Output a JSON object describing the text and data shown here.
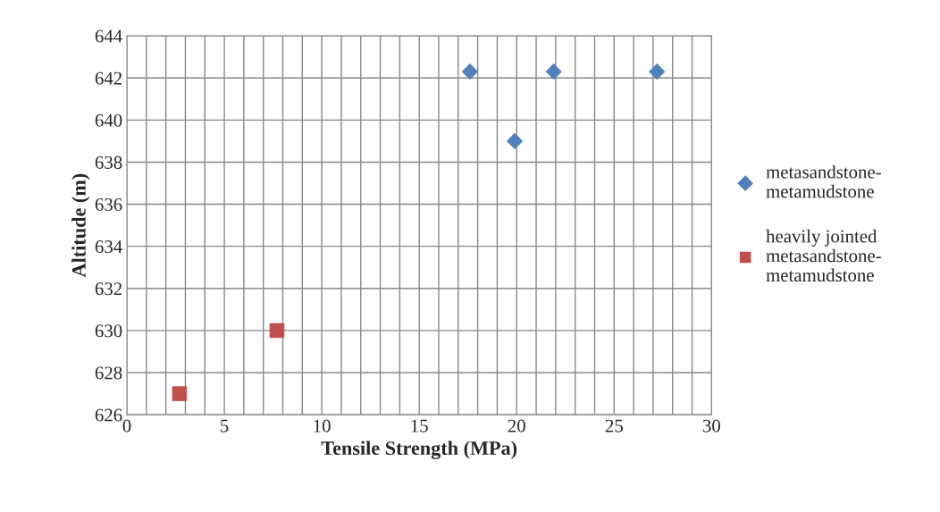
{
  "chart_data": {
    "type": "scatter",
    "xlabel": "Tensile Strength (MPa)",
    "ylabel": "Altitude (m)",
    "series": [
      {
        "name": "metasandstone-\nmetamudstone",
        "color": "#4f81bd",
        "marker": "diamond",
        "x": [
          17.6,
          19.9,
          21.9,
          27.2
        ],
        "values": [
          642.3,
          639,
          642.3,
          642.3
        ]
      },
      {
        "name": "heavily jointed\nmetasandstone-\nmetamudstone",
        "color": "#c0504d",
        "marker": "square",
        "x": [
          2.7,
          7.7
        ],
        "values": [
          627,
          630
        ]
      }
    ],
    "xlim": [
      0,
      30
    ],
    "ylim": [
      626,
      644
    ],
    "xticks": [
      0,
      {
        "value": 1,
        "label": null
      },
      {
        "value": 2,
        "label": null
      },
      {
        "value": 3,
        "label": null
      },
      {
        "value": 4,
        "label": null
      },
      5,
      {
        "value": 6,
        "label": null
      },
      {
        "value": 7,
        "label": null
      },
      {
        "value": 8,
        "label": null
      },
      {
        "value": 9,
        "label": null
      },
      10,
      {
        "value": 11,
        "label": null
      },
      {
        "value": 12,
        "label": null
      },
      {
        "value": 13,
        "label": null
      },
      {
        "value": 14,
        "label": null
      },
      15,
      {
        "value": 16,
        "label": null
      },
      {
        "value": 17,
        "label": null
      },
      {
        "value": 18,
        "label": null
      },
      {
        "value": 19,
        "label": null
      },
      20,
      {
        "value": 21,
        "label": null
      },
      {
        "value": 22,
        "label": null
      },
      {
        "value": 23,
        "label": null
      },
      {
        "value": 24,
        "label": null
      },
      25,
      {
        "value": 26,
        "label": null
      },
      {
        "value": 27,
        "label": null
      },
      {
        "value": 28,
        "label": null
      },
      {
        "value": 29,
        "label": null
      },
      30
    ],
    "yticks": [
      626,
      628,
      630,
      632,
      634,
      636,
      638,
      640,
      642,
      644
    ],
    "grid": true,
    "legend": "right"
  }
}
